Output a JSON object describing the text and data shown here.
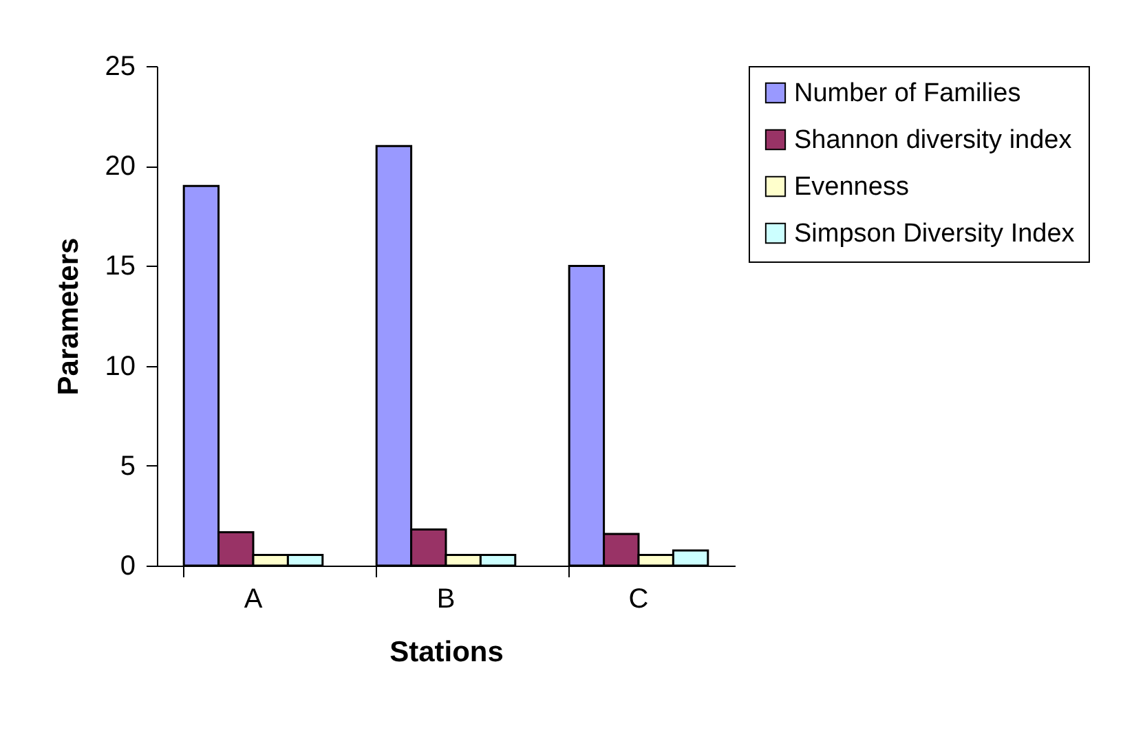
{
  "chart_data": {
    "type": "bar",
    "xlabel": "Stations",
    "ylabel": "Parameters",
    "categories": [
      "A",
      "B",
      "C"
    ],
    "series": [
      {
        "name": "Number of Families",
        "color": "#9999ff",
        "values": [
          19,
          21,
          15
        ]
      },
      {
        "name": "Shannon diversity index",
        "color": "#993366",
        "values": [
          1.67,
          1.81,
          1.58
        ]
      },
      {
        "name": "Evenness",
        "color": "#ffffcc",
        "values": [
          0.53,
          0.53,
          0.53
        ]
      },
      {
        "name": "Simpson Diversity Index",
        "color": "#ccffff",
        "values": [
          0.53,
          0.53,
          0.76
        ]
      }
    ],
    "ylim": [
      0,
      25
    ],
    "yticks": [
      0,
      5,
      10,
      15,
      20,
      25
    ],
    "grid": false,
    "legend": "right"
  }
}
